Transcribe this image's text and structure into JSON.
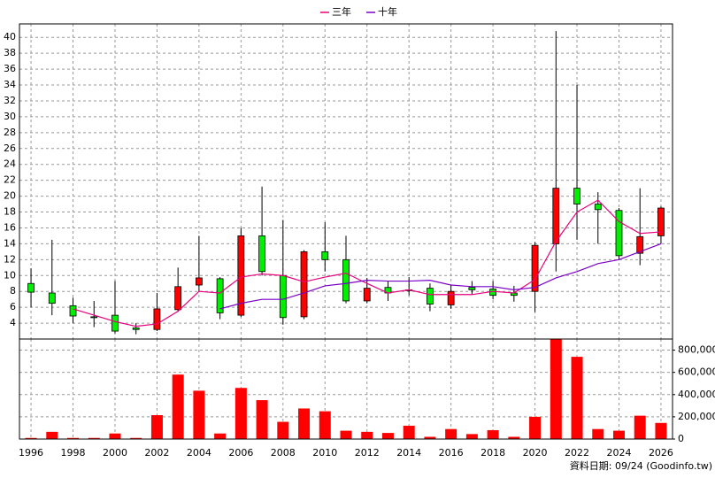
{
  "chart_data": [
    {
      "type": "candlestick",
      "legend": "top",
      "grid": true,
      "x": [
        1996,
        1997,
        1998,
        1999,
        2000,
        2001,
        2002,
        2003,
        2004,
        2005,
        2006,
        2007,
        2008,
        2009,
        2010,
        2011,
        2012,
        2013,
        2014,
        2015,
        2016,
        2017,
        2018,
        2019,
        2020,
        2021,
        2022,
        2023,
        2024,
        2025,
        2026
      ],
      "open": [
        9.0,
        7.8,
        6.2,
        4.8,
        5.0,
        3.4,
        3.2,
        5.7,
        8.8,
        9.6,
        5.0,
        15.0,
        10.0,
        4.8,
        13.0,
        12.0,
        6.8,
        8.5,
        8.1,
        8.4,
        6.3,
        8.5,
        8.3,
        7.8,
        8.0,
        14.0,
        21.0,
        19.0,
        18.2,
        12.8,
        15.0
      ],
      "high": [
        10.9,
        14.5,
        7.2,
        6.8,
        9.3,
        4.0,
        7.8,
        11.0,
        15.0,
        9.8,
        16.0,
        21.2,
        17.0,
        13.2,
        16.7,
        15.0,
        9.7,
        9.3,
        9.8,
        9.0,
        8.8,
        9.3,
        9.3,
        8.7,
        14.2,
        40.8,
        34.0,
        20.5,
        18.5,
        21.0,
        18.7
      ],
      "low": [
        6.0,
        5.0,
        4.0,
        3.5,
        2.7,
        2.6,
        3.0,
        5.5,
        8.0,
        4.5,
        4.8,
        10.0,
        3.8,
        4.5,
        10.5,
        6.5,
        6.5,
        6.8,
        7.5,
        5.5,
        5.8,
        7.6,
        7.0,
        6.7,
        5.4,
        10.5,
        14.5,
        14.0,
        12.0,
        11.3,
        14.0
      ],
      "close": [
        7.9,
        6.5,
        4.9,
        4.7,
        3.0,
        3.2,
        5.8,
        8.6,
        9.7,
        5.3,
        15.0,
        10.5,
        4.7,
        13.0,
        12.0,
        6.8,
        8.4,
        7.8,
        8.2,
        6.4,
        8.0,
        8.2,
        7.5,
        7.5,
        13.8,
        21.0,
        19.0,
        18.3,
        12.5,
        14.9,
        18.5
      ],
      "up_color": "#ff0000",
      "down_color": "#00ee00",
      "series": [
        {
          "name": "三年",
          "color": "#e8007c",
          "values": [
            null,
            null,
            5.8,
            5.0,
            4.2,
            3.6,
            3.9,
            5.5,
            8.0,
            7.8,
            9.8,
            10.2,
            10.0,
            9.2,
            9.8,
            10.3,
            9.0,
            7.8,
            8.2,
            7.6,
            7.6,
            7.6,
            8.0,
            7.8,
            9.5,
            14.3,
            18.0,
            19.5,
            16.8,
            15.3,
            15.5
          ]
        },
        {
          "name": "十年",
          "color": "#7a00c8",
          "values": [
            null,
            null,
            null,
            null,
            null,
            null,
            null,
            null,
            null,
            5.8,
            6.5,
            7.0,
            7.0,
            7.8,
            8.7,
            9.0,
            9.4,
            9.3,
            9.3,
            9.4,
            8.8,
            8.6,
            8.6,
            8.2,
            8.5,
            9.7,
            10.5,
            11.5,
            12.0,
            13.0,
            14.0
          ]
        }
      ],
      "xlim": [
        1995.45,
        2026.55
      ],
      "xticks": [
        1996,
        1998,
        2000,
        2002,
        2004,
        2006,
        2008,
        2010,
        2012,
        2014,
        2016,
        2018,
        2020,
        2022,
        2024,
        2026
      ],
      "ylim": [
        2,
        41.7
      ],
      "yticks": [
        4,
        6,
        8,
        10,
        12,
        14,
        16,
        18,
        20,
        22,
        24,
        26,
        28,
        30,
        32,
        34,
        36,
        38,
        40
      ]
    },
    {
      "type": "bar",
      "grid": true,
      "color": "#ff0000",
      "x": [
        1996,
        1997,
        1998,
        1999,
        2000,
        2001,
        2002,
        2003,
        2004,
        2005,
        2006,
        2007,
        2008,
        2009,
        2010,
        2011,
        2012,
        2013,
        2014,
        2015,
        2016,
        2017,
        2018,
        2019,
        2020,
        2021,
        2022,
        2023,
        2024,
        2025,
        2026
      ],
      "values": [
        10000,
        65000,
        10000,
        10000,
        50000,
        10000,
        215000,
        580000,
        435000,
        50000,
        460000,
        350000,
        155000,
        275000,
        250000,
        75000,
        65000,
        55000,
        120000,
        20000,
        90000,
        45000,
        80000,
        20000,
        200000,
        900000,
        740000,
        90000,
        75000,
        210000,
        145000
      ],
      "xlim": [
        1995.45,
        2026.55
      ],
      "ylim": [
        0,
        900000
      ],
      "yticks": [
        0,
        {
          "value": 200000,
          "label": "200,000"
        },
        {
          "value": 400000,
          "label": "400,000"
        },
        {
          "value": 600000,
          "label": "600,000"
        },
        {
          "value": 800000,
          "label": "800,000"
        }
      ]
    }
  ],
  "footer": "資料日期: 09/24 (Goodinfo.tw)"
}
